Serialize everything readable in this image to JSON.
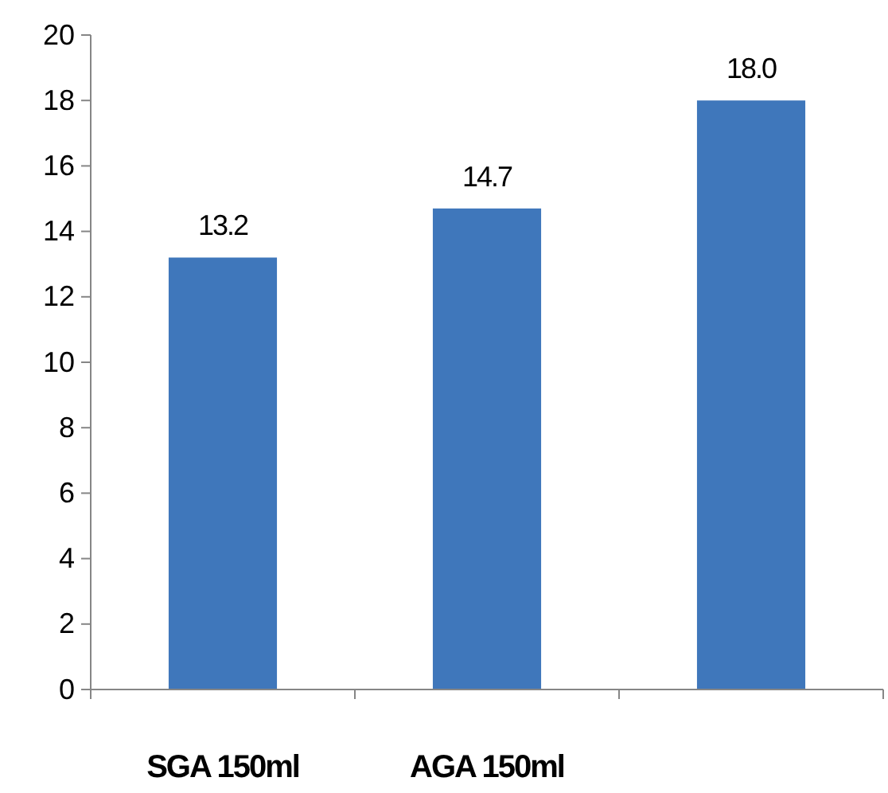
{
  "chart_data": {
    "type": "bar",
    "categories": [
      "SGA 150ml",
      "AGA 150ml",
      null
    ],
    "values": [
      13.2,
      14.7,
      18.0
    ],
    "value_labels": [
      "13.2",
      "14.7",
      "18.0"
    ],
    "color": "#3f77bb",
    "ylim": [
      0,
      20
    ],
    "yticks": [
      0,
      2,
      4,
      6,
      8,
      10,
      12,
      14,
      16,
      18,
      20
    ]
  }
}
